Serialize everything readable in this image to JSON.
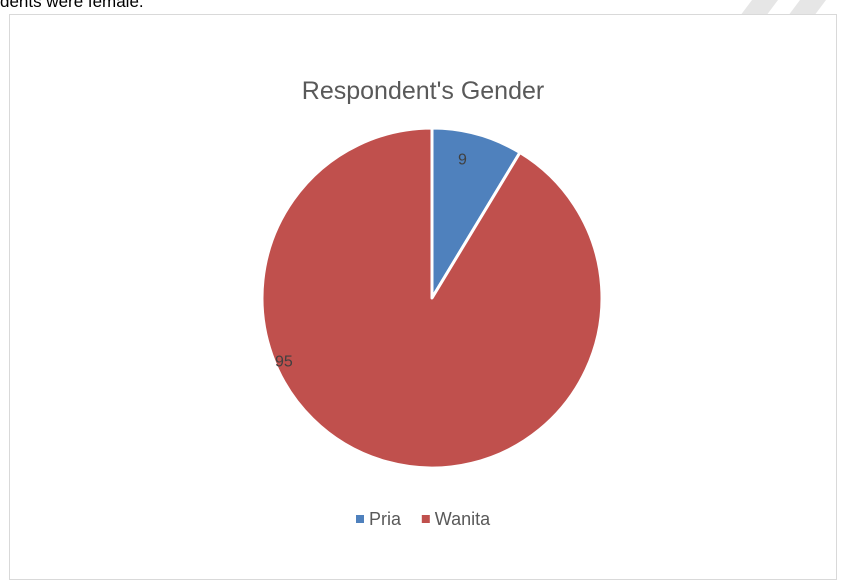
{
  "document": {
    "top_text": "dents were female."
  },
  "chart_data": {
    "type": "pie",
    "title": "Respondent's Gender",
    "categories": [
      "Pria",
      "Wanita"
    ],
    "values": [
      9,
      95
    ],
    "colors": [
      "#4f81bd",
      "#c0504d"
    ],
    "data_labels": [
      "9",
      "95"
    ],
    "legend": "bottom",
    "start_angle_deg": 0,
    "direction": "clockwise"
  }
}
